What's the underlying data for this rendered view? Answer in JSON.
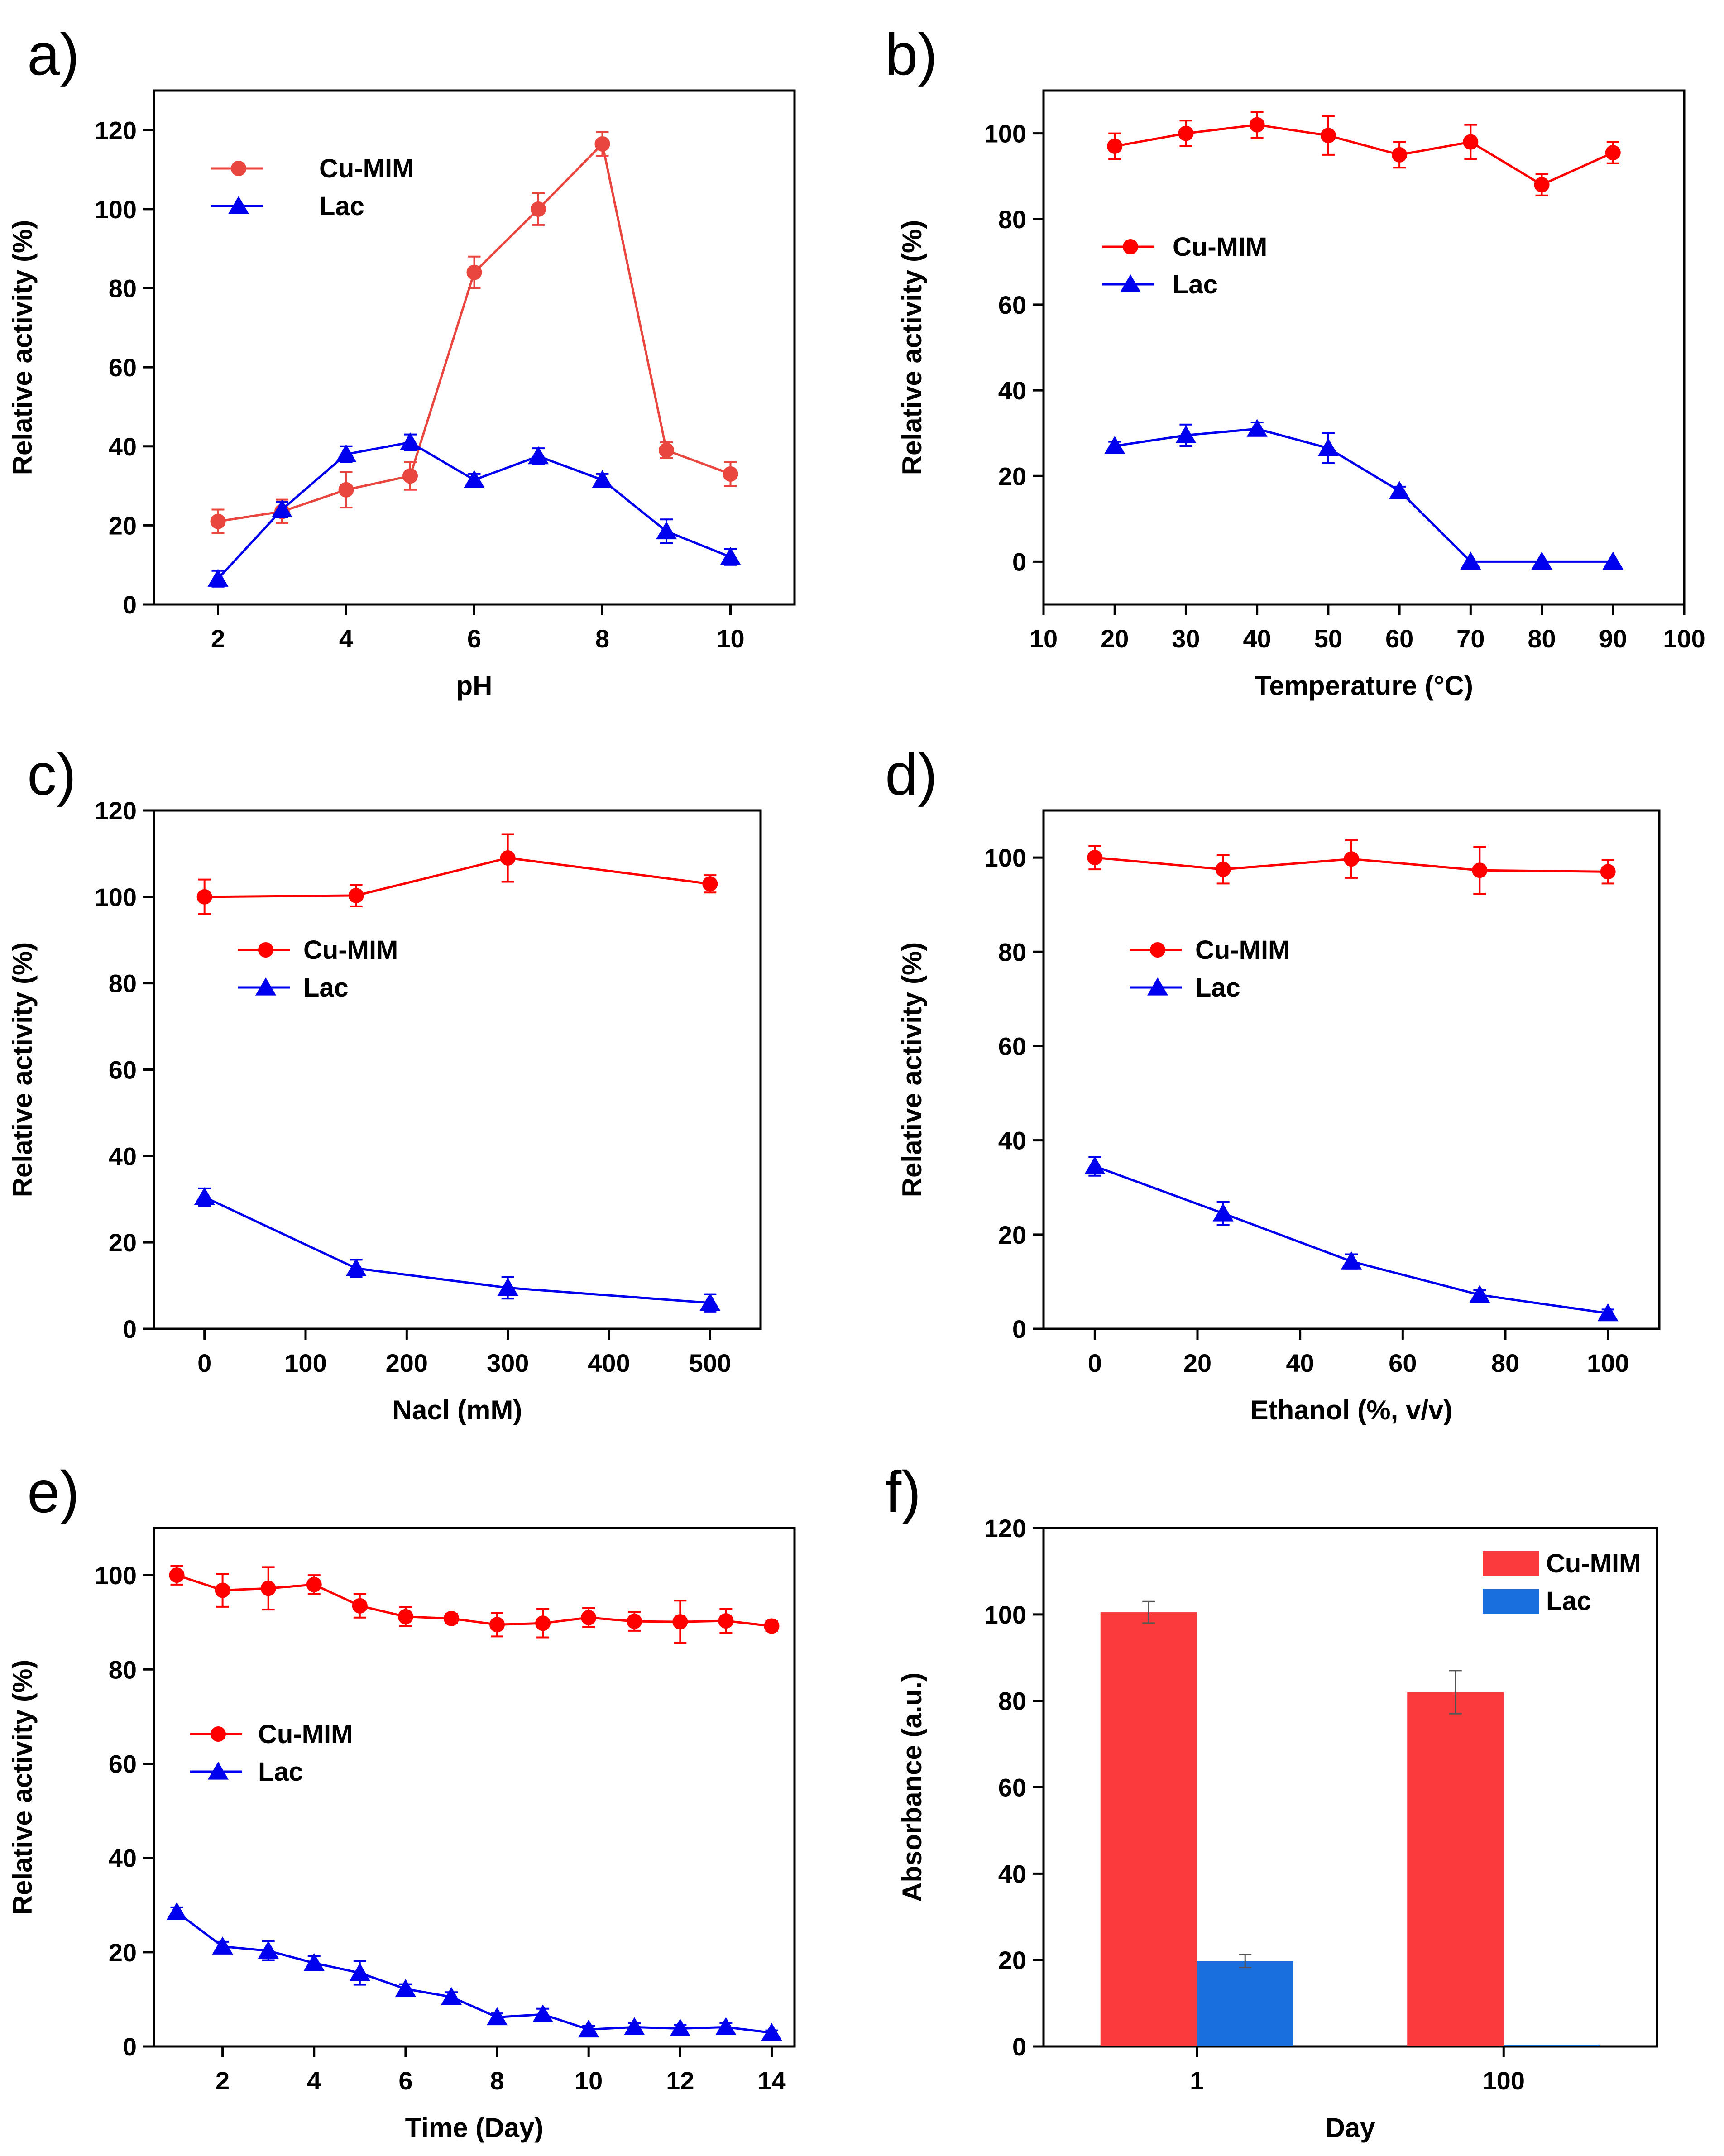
{
  "colors": {
    "cu": "#ff0000",
    "cu_a": "#e8463f",
    "lac": "#0000ee",
    "bar_cu": "#fb3b3b",
    "bar_lac": "#1a6fdf"
  },
  "chart_data": [
    {
      "id": "a",
      "letter": "a)",
      "type": "line",
      "xlabel": "pH",
      "ylabel": "Relative activity (%)",
      "xlim": [
        1,
        11
      ],
      "ylim": [
        0,
        130
      ],
      "xticks": [
        2,
        4,
        6,
        8,
        10
      ],
      "yticks": [
        0,
        20,
        40,
        60,
        80,
        100,
        120
      ],
      "series": [
        {
          "name": "Cu-MIM",
          "marker": "circle",
          "color_key": "cu_a",
          "x": [
            2,
            3,
            4,
            5,
            6,
            7,
            8,
            9,
            10
          ],
          "y": [
            21,
            23.5,
            29,
            32.5,
            84,
            100,
            116.5,
            39,
            33
          ],
          "err": [
            3,
            3,
            4.5,
            3.5,
            4,
            4,
            3,
            2,
            3
          ]
        },
        {
          "name": "Lac",
          "marker": "triangle",
          "color_key": "lac",
          "x": [
            2,
            3,
            4,
            5,
            6,
            7,
            8,
            9,
            10
          ],
          "y": [
            6.5,
            24,
            38,
            41,
            31.5,
            37.5,
            31.5,
            18.5,
            12
          ],
          "err": [
            2,
            2,
            2,
            2,
            1.5,
            2,
            1.5,
            3,
            2
          ]
        }
      ]
    },
    {
      "id": "b",
      "letter": "b)",
      "type": "line",
      "xlabel": "Temperature (°C)",
      "ylabel": "Relative activity (%)",
      "xlim": [
        10,
        100
      ],
      "ylim": [
        -10,
        110
      ],
      "xticks": [
        10,
        20,
        30,
        40,
        50,
        60,
        70,
        80,
        90,
        100
      ],
      "yticks": [
        0,
        20,
        40,
        60,
        80,
        100
      ],
      "series": [
        {
          "name": "Cu-MIM",
          "marker": "circle",
          "color_key": "cu",
          "x": [
            20,
            30,
            40,
            50,
            60,
            70,
            80,
            90
          ],
          "y": [
            97,
            100,
            102,
            99.5,
            95,
            98,
            88,
            95.5
          ],
          "err": [
            3,
            3,
            3,
            4.5,
            3,
            4,
            2.5,
            2.5
          ]
        },
        {
          "name": "Lac",
          "marker": "triangle",
          "color_key": "lac",
          "x": [
            20,
            30,
            40,
            50,
            60,
            70,
            80,
            90
          ],
          "y": [
            27,
            29.5,
            31,
            26.5,
            16.5,
            0,
            0,
            0
          ],
          "err": [
            1,
            2.5,
            1.5,
            3.5,
            1,
            0,
            0,
            0
          ]
        }
      ]
    },
    {
      "id": "c",
      "letter": "c)",
      "type": "line",
      "xlabel": "Nacl (mM)",
      "ylabel": "Relative activity (%)",
      "xlim": [
        -50,
        550
      ],
      "ylim": [
        0,
        120
      ],
      "xticks": [
        0,
        100,
        200,
        300,
        400,
        500
      ],
      "yticks": [
        0,
        20,
        40,
        60,
        80,
        100,
        120
      ],
      "series": [
        {
          "name": "Cu-MIM",
          "marker": "circle",
          "color_key": "cu",
          "x": [
            0,
            150,
            300,
            500
          ],
          "y": [
            100,
            100.3,
            109,
            103
          ],
          "err": [
            4,
            2.5,
            5.5,
            2
          ]
        },
        {
          "name": "Lac",
          "marker": "triangle",
          "color_key": "lac",
          "x": [
            0,
            150,
            300,
            500
          ],
          "y": [
            30.5,
            14,
            9.5,
            6
          ],
          "err": [
            2,
            2,
            2.5,
            2
          ]
        }
      ]
    },
    {
      "id": "d",
      "letter": "d)",
      "type": "line",
      "xlabel": "Ethanol (%, v/v)",
      "ylabel": "Relative activity (%)",
      "xlim": [
        -10,
        110
      ],
      "ylim": [
        0,
        110
      ],
      "xticks": [
        0,
        20,
        40,
        60,
        80,
        100
      ],
      "yticks": [
        0,
        20,
        40,
        60,
        80,
        100
      ],
      "series": [
        {
          "name": "Cu-MIM",
          "marker": "circle",
          "color_key": "cu",
          "x": [
            0,
            25,
            50,
            75,
            100
          ],
          "y": [
            100,
            97.5,
            99.7,
            97.3,
            97
          ],
          "err": [
            2.5,
            3,
            4,
            5,
            2.5
          ]
        },
        {
          "name": "Lac",
          "marker": "triangle",
          "color_key": "lac",
          "x": [
            0,
            25,
            50,
            75,
            100
          ],
          "y": [
            34.5,
            24.5,
            14.3,
            7.2,
            3.3
          ],
          "err": [
            2,
            2.5,
            1.5,
            1,
            0.8
          ]
        }
      ]
    },
    {
      "id": "e",
      "letter": "e)",
      "type": "line",
      "xlabel": "Time (Day)",
      "ylabel": "Relative activity (%)",
      "xlim": [
        0.5,
        14.5
      ],
      "ylim": [
        0,
        110
      ],
      "xticks": [
        2,
        4,
        6,
        8,
        10,
        12,
        14
      ],
      "yticks": [
        0,
        20,
        40,
        60,
        80,
        100
      ],
      "series": [
        {
          "name": "Cu-MIM",
          "marker": "circle",
          "color_key": "cu",
          "x": [
            1,
            2,
            3,
            4,
            5,
            6,
            7,
            8,
            9,
            10,
            11,
            12,
            13,
            14
          ],
          "y": [
            100,
            96.8,
            97.2,
            98,
            93.5,
            91.2,
            90.8,
            89.5,
            89.8,
            91,
            90.2,
            90.1,
            90.3,
            89.2
          ],
          "err": [
            2,
            3.5,
            4.5,
            2,
            2.5,
            2,
            1,
            2.5,
            3,
            2,
            2,
            4.5,
            2.5,
            1
          ]
        },
        {
          "name": "Lac",
          "marker": "triangle",
          "color_key": "lac",
          "x": [
            1,
            2,
            3,
            4,
            5,
            6,
            7,
            8,
            9,
            10,
            11,
            12,
            13,
            14
          ],
          "y": [
            28.5,
            21.2,
            20.3,
            17.7,
            15.6,
            12.2,
            10.5,
            6.2,
            6.8,
            3.6,
            4.1,
            3.8,
            4.1,
            2.9
          ],
          "err": [
            1,
            1,
            2,
            1.5,
            2.5,
            1,
            1,
            0.8,
            1.2,
            0.8,
            0.8,
            0.8,
            0.8,
            0.5
          ]
        }
      ]
    },
    {
      "id": "f",
      "letter": "f)",
      "type": "bar",
      "xlabel": "Day",
      "ylabel": "Absorbance (a.u.)",
      "ylim": [
        0,
        120
      ],
      "yticks": [
        0,
        20,
        40,
        60,
        80,
        100,
        120
      ],
      "categories": [
        "1",
        "100"
      ],
      "series": [
        {
          "name": "Cu-MIM",
          "color_key": "bar_cu",
          "values": [
            100.5,
            82
          ],
          "err": [
            2.5,
            5
          ]
        },
        {
          "name": "Lac",
          "color_key": "bar_lac",
          "values": [
            19.8,
            0.4
          ],
          "err": [
            1.5,
            0
          ]
        }
      ]
    }
  ]
}
